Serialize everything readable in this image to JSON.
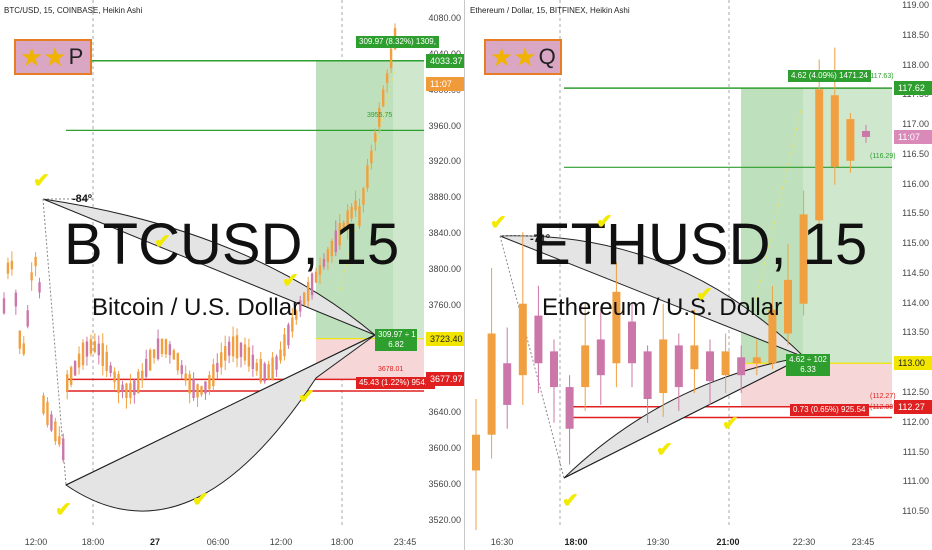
{
  "panes": [
    {
      "title": "BTC/USD, 15, COINBASE, Heikin Ashi",
      "badge": {
        "stars": "★★",
        "label": "P"
      },
      "watermark_symbol": "BTCUSD, 15",
      "watermark_name": "Bitcoin / U.S. Dollar",
      "angle_label": "-84º",
      "y_ticks": [
        "4080.00",
        "4040.00",
        "4000.00",
        "3960.00",
        "3920.00",
        "3880.00",
        "3840.00",
        "3800.00",
        "3760.00",
        "3720.00",
        "3680.00",
        "3640.00",
        "3600.00",
        "3560.00",
        "3520.00"
      ],
      "x_ticks": [
        {
          "label": "12:00",
          "bold": false
        },
        {
          "label": "18:00",
          "bold": false
        },
        {
          "label": "27",
          "bold": true
        },
        {
          "label": "06:00",
          "bold": false
        },
        {
          "label": "12:00",
          "bold": false
        },
        {
          "label": "18:00",
          "bold": false
        },
        {
          "label": "23:45",
          "bold": false
        }
      ],
      "axis_tags": [
        {
          "text": "4033.37",
          "color": "#2e9e2e"
        },
        {
          "text": "11:07",
          "color": "#f09a3a"
        },
        {
          "text": "3723.40",
          "color": "#f2e600",
          "dark": true
        },
        {
          "text": "3677.97",
          "color": "#e02020"
        }
      ],
      "levels": [
        "3955.75",
        "3678.01"
      ],
      "target_tag": "309.97 (8.32%) 1309,",
      "stop_tag": "45.43 (1.22%) 954.5",
      "ratio_tag_top": "309.97 ÷ 1",
      "ratio_tag_bottom": "6.82",
      "chart_data": {
        "type": "candlestick",
        "style": "Heikin Ashi",
        "timeframe": "15",
        "ylim": [
          3510,
          4090
        ],
        "last_price": 4033.37,
        "position": {
          "entry": 3723.4,
          "target": 4033.37,
          "stop": 3677.97,
          "reward": 309.97,
          "reward_pct": 8.32,
          "risk": 45.43,
          "risk_pct": 1.22,
          "ratio": 6.82
        }
      }
    },
    {
      "title": "Ethereum / Dollar, 15, BITFINEX, Heikin Ashi",
      "badge": {
        "stars": "★★",
        "label": "Q"
      },
      "watermark_symbol": "ETHUSD, 15",
      "watermark_name": "Ethereum / U.S. Dollar",
      "angle_label": "-71º",
      "y_ticks": [
        "119.00",
        "118.50",
        "118.00",
        "117.50",
        "117.00",
        "116.50",
        "116.00",
        "115.50",
        "115.00",
        "114.50",
        "114.00",
        "113.50",
        "113.00",
        "112.50",
        "112.00",
        "111.50",
        "111.00",
        "110.50"
      ],
      "x_ticks": [
        {
          "label": "16:30",
          "bold": false
        },
        {
          "label": "18:00",
          "bold": true
        },
        {
          "label": "19:30",
          "bold": false
        },
        {
          "label": "21:00",
          "bold": true
        },
        {
          "label": "22:30",
          "bold": false
        },
        {
          "label": "23:45",
          "bold": false
        }
      ],
      "axis_tags": [
        {
          "text": "117.62",
          "color": "#2e9e2e"
        },
        {
          "text": "11:07",
          "color": "#d98ab8"
        },
        {
          "text": "113.00",
          "color": "#f2e600",
          "dark": true
        },
        {
          "text": "112.27",
          "color": "#e02020"
        }
      ],
      "levels": [
        "(117.63)",
        "(116.29)",
        "(112.27)",
        "(112.09)"
      ],
      "target_tag": "4.62 (4.09%) 1471.24",
      "stop_tag": "0.73 (0.65%) 925.54",
      "ratio_tag_top": "4.62 ÷ 102",
      "ratio_tag_bottom": "6.33",
      "chart_data": {
        "type": "candlestick",
        "style": "Heikin Ashi",
        "timeframe": "15",
        "ylim": [
          110.2,
          119.1
        ],
        "last_price": 117.62,
        "position": {
          "entry": 113.0,
          "target": 117.62,
          "stop": 112.27,
          "reward": 4.62,
          "reward_pct": 4.09,
          "risk": 0.73,
          "risk_pct": 0.65,
          "ratio": 6.33
        }
      }
    }
  ]
}
